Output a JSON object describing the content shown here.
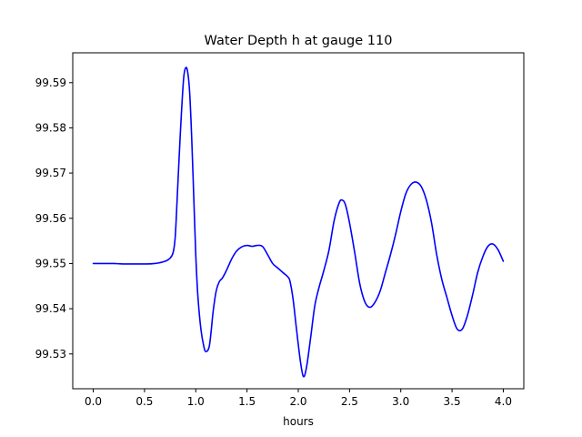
{
  "chart_data": {
    "type": "line",
    "title": "Water Depth h at gauge 110",
    "xlabel": "hours",
    "ylabel": "",
    "xlim": [
      -0.2,
      4.2
    ],
    "ylim": [
      99.5223,
      99.5966
    ],
    "grid": false,
    "xticks": [
      0.0,
      0.5,
      1.0,
      1.5,
      2.0,
      2.5,
      3.0,
      3.5,
      4.0
    ],
    "xtick_labels": [
      "0.0",
      "0.5",
      "1.0",
      "1.5",
      "2.0",
      "2.5",
      "3.0",
      "3.5",
      "4.0"
    ],
    "yticks": [
      99.53,
      99.54,
      99.55,
      99.56,
      99.57,
      99.58,
      99.59
    ],
    "ytick_labels": [
      "99.53",
      "99.54",
      "99.55",
      "99.56",
      "99.57",
      "99.58",
      "99.59"
    ],
    "series": [
      {
        "color": "#0000ff",
        "x": [
          0.0,
          0.1,
          0.2,
          0.3,
          0.4,
          0.5,
          0.6,
          0.7,
          0.75,
          0.78,
          0.8,
          0.82,
          0.85,
          0.88,
          0.9,
          0.92,
          0.94,
          0.96,
          0.98,
          1.0,
          1.02,
          1.05,
          1.08,
          1.1,
          1.13,
          1.15,
          1.17,
          1.2,
          1.23,
          1.26,
          1.3,
          1.35,
          1.4,
          1.45,
          1.5,
          1.55,
          1.6,
          1.65,
          1.7,
          1.75,
          1.8,
          1.85,
          1.9,
          1.92,
          1.95,
          1.98,
          2.02,
          2.05,
          2.08,
          2.12,
          2.16,
          2.2,
          2.25,
          2.3,
          2.35,
          2.4,
          2.43,
          2.46,
          2.5,
          2.55,
          2.6,
          2.65,
          2.7,
          2.75,
          2.8,
          2.85,
          2.9,
          2.95,
          3.0,
          3.05,
          3.1,
          3.15,
          3.2,
          3.25,
          3.3,
          3.35,
          3.4,
          3.45,
          3.5,
          3.55,
          3.6,
          3.65,
          3.7,
          3.75,
          3.8,
          3.85,
          3.9,
          3.95,
          4.0
        ],
        "y": [
          99.55,
          99.55,
          99.55,
          99.5499,
          99.5499,
          99.5499,
          99.55,
          99.5505,
          99.5512,
          99.5525,
          99.556,
          99.565,
          99.579,
          99.5905,
          99.5932,
          99.5925,
          99.588,
          99.578,
          99.565,
          99.552,
          99.543,
          99.5355,
          99.5315,
          99.5305,
          99.5315,
          99.535,
          99.5395,
          99.544,
          99.546,
          99.5468,
          99.5485,
          99.551,
          99.5528,
          99.5537,
          99.554,
          99.5538,
          99.554,
          99.5538,
          99.552,
          99.55,
          99.549,
          99.548,
          99.547,
          99.546,
          99.542,
          99.536,
          99.5285,
          99.525,
          99.527,
          99.5335,
          99.5405,
          99.5445,
          99.5485,
          99.553,
          99.5595,
          99.5635,
          99.564,
          99.563,
          99.559,
          99.5525,
          99.5455,
          99.5415,
          99.5403,
          99.5415,
          99.544,
          99.548,
          99.552,
          99.5565,
          99.5615,
          99.5655,
          99.5675,
          99.568,
          99.567,
          99.564,
          99.559,
          99.552,
          99.5465,
          99.5425,
          99.5385,
          99.5355,
          99.5355,
          99.5385,
          99.543,
          99.548,
          99.5515,
          99.5538,
          99.5543,
          99.553,
          99.5505
        ]
      }
    ]
  }
}
